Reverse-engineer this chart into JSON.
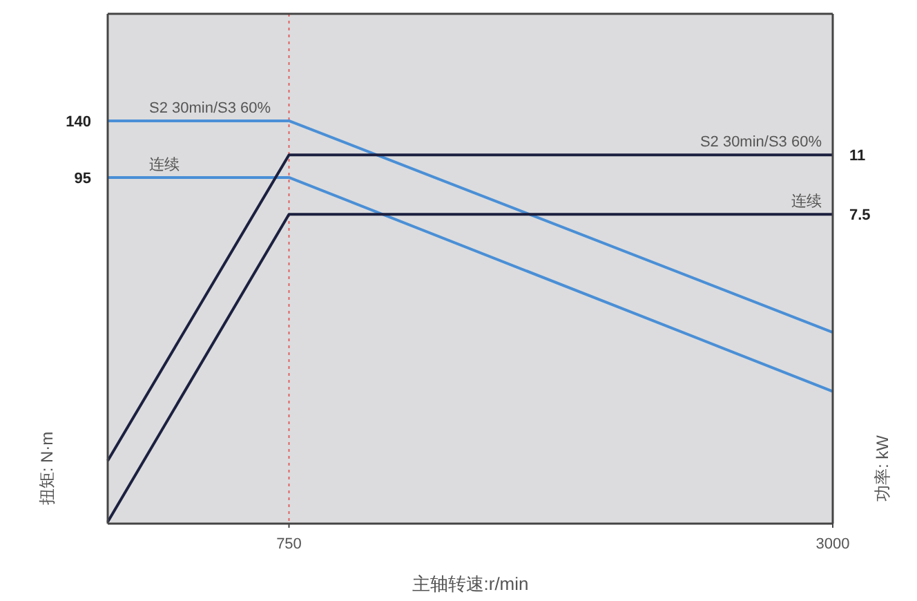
{
  "chart_data": {
    "type": "line",
    "xlabel": "主轴转速:r/min",
    "ylabel": "扭矩: N·m",
    "y2label": "功率: kW",
    "x": [
      0,
      750,
      3000
    ],
    "xlim": [
      0,
      3000
    ],
    "xticks": [
      750,
      3000
    ],
    "ylim": [
      -180,
      225
    ],
    "yticks": [
      95,
      140
    ],
    "y2lim": [
      -10.7,
      19.3
    ],
    "y2ticks": [
      7.5,
      11
    ],
    "grid": false,
    "line_style": "solid",
    "series": [
      {
        "name": "S2 30min/S3 60%",
        "color": "#4a8fd6",
        "values": [
          140,
          140,
          -28
        ]
      },
      {
        "name": "连续",
        "color": "#4a8fd6",
        "values": [
          95,
          95,
          -75
        ]
      },
      {
        "name": "S2 30min/S3 60%",
        "color": "#1c2040",
        "axis": "y2",
        "values": [
          -7,
          11,
          11
        ]
      },
      {
        "name": "连续",
        "color": "#1c2040",
        "axis": "y2",
        "values": [
          -10.6,
          7.5,
          7.5
        ]
      }
    ],
    "ref_lines": [
      {
        "axis": "x",
        "value": 750,
        "color": "#e06060",
        "line_style": "dotted"
      }
    ]
  }
}
